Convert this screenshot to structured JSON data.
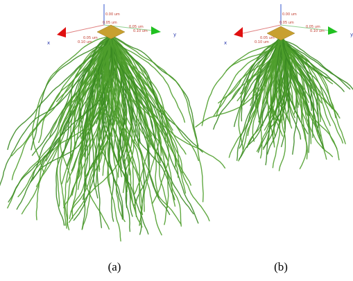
{
  "panels": [
    {
      "caption": "(a)",
      "axis_labels": {
        "x": "x",
        "y": "y",
        "ticks": [
          "0.00 um",
          "0.05 um",
          "0.05 um",
          "0.05 um",
          "0.10 um",
          "0.10 um"
        ]
      }
    },
    {
      "caption": "(b)",
      "axis_labels": {
        "x": "x",
        "y": "y",
        "ticks": [
          "0.00 um",
          "0.05 um",
          "0.05 um",
          "0.05 um",
          "0.10 um",
          "0.10 um"
        ]
      }
    }
  ]
}
